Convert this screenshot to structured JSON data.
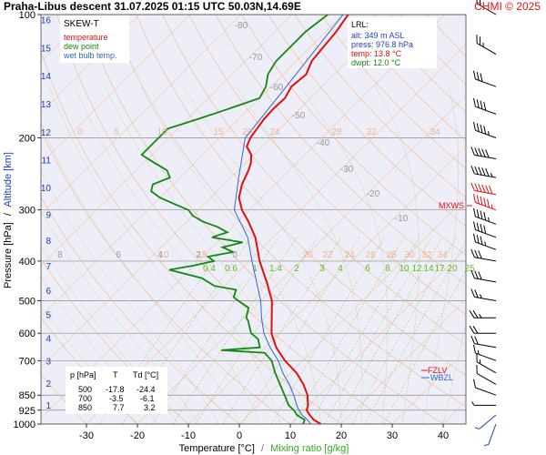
{
  "header": {
    "title": "Praha-Libus   descent   31.07.2025 01:15 UTC   50.03N,14.69E",
    "copyright": "CHMI © 2025"
  },
  "legend": {
    "title": "SKEW-T",
    "items": [
      {
        "label": "temperature",
        "color": "#e01010"
      },
      {
        "label": "dew point",
        "color": "#118811"
      },
      {
        "label": "wet bulb temp.",
        "color": "#3366cc"
      }
    ]
  },
  "lrl": {
    "title": "LRL:",
    "lines": [
      "alt: 349 m ASL",
      "press: 976.8 hPa",
      "temp: 13.8 °C",
      "dwpt: 12.0 °C"
    ],
    "colors": [
      "#1a3fbf",
      "#1a3fbf",
      "#e01010",
      "#118811"
    ]
  },
  "markers": {
    "mxws": "MXWS",
    "fzlv": "FZLV",
    "wbzl": "WBZL"
  },
  "table": {
    "header": [
      "p [hPa]",
      "T",
      "Td [°C]"
    ],
    "rows": [
      [
        "500",
        "-17.8",
        "-24.4"
      ],
      [
        "700",
        "-3.5",
        "-6.1"
      ],
      [
        "850",
        "7.7",
        "3.2"
      ]
    ]
  },
  "chart_data": {
    "type": "line",
    "pressure_levels": [
      100,
      200,
      300,
      400,
      500,
      600,
      700,
      850,
      925,
      1000
    ],
    "altitude_ticks": [
      1,
      2,
      3,
      4,
      5,
      6,
      7,
      8,
      9,
      10,
      11,
      12,
      13,
      14,
      15,
      16
    ],
    "temperature_ticks": [
      -30,
      -20,
      -10,
      0,
      10,
      20,
      30,
      40
    ],
    "xlim": [
      -35,
      45
    ],
    "ylim": [
      1000,
      100
    ],
    "xlabel": "Temperature [°C]",
    "xlabel_sep": "/",
    "xlabel2": "Mixing ratio [g/kg]",
    "ylabel": "Pressure [hPa]",
    "ylabel_sep": "/",
    "ylabel2": "Altitude [km]",
    "isotherm_labels_row1": [
      0,
      5,
      10,
      15,
      20,
      24,
      28,
      32,
      34
    ],
    "isotherm_labels_row2": [
      8,
      6,
      4,
      2,
      0,
      -10,
      -20,
      -30,
      -40,
      -50,
      -60,
      -70,
      -80
    ],
    "mixing_ratio_labels": [
      0.4,
      0.6,
      1,
      1.4,
      2,
      3,
      4,
      6,
      8,
      10,
      12,
      14,
      17,
      20,
      25
    ],
    "dry_adiabat_labels": [
      10,
      15,
      20,
      22,
      24,
      26,
      28,
      30,
      32,
      34
    ],
    "series": [
      {
        "name": "temperature",
        "color": "#e01010",
        "points": [
          [
            1000,
            16.0
          ],
          [
            976.8,
            13.8
          ],
          [
            950,
            12.0
          ],
          [
            925,
            10.5
          ],
          [
            900,
            9.8
          ],
          [
            850,
            7.7
          ],
          [
            800,
            4.8
          ],
          [
            750,
            1.2
          ],
          [
            700,
            -3.5
          ],
          [
            650,
            -7.8
          ],
          [
            600,
            -11.5
          ],
          [
            550,
            -14.5
          ],
          [
            500,
            -17.8
          ],
          [
            450,
            -22.5
          ],
          [
            400,
            -28.0
          ],
          [
            350,
            -33.5
          ],
          [
            320,
            -38.0
          ],
          [
            300,
            -41.5
          ],
          [
            280,
            -44.5
          ],
          [
            260,
            -46.5
          ],
          [
            240,
            -48.0
          ],
          [
            230,
            -49.0
          ],
          [
            220,
            -50.5
          ],
          [
            210,
            -53.0
          ],
          [
            200,
            -54.0
          ],
          [
            190,
            -54.5
          ],
          [
            180,
            -55.0
          ],
          [
            170,
            -55.2
          ],
          [
            160,
            -55.0
          ],
          [
            150,
            -56.0
          ],
          [
            140,
            -55.5
          ],
          [
            130,
            -57.0
          ],
          [
            120,
            -57.5
          ],
          [
            110,
            -58.0
          ],
          [
            100,
            -59.0
          ]
        ]
      },
      {
        "name": "dew point",
        "color": "#118811",
        "points": [
          [
            1000,
            12.5
          ],
          [
            976.8,
            12.0
          ],
          [
            950,
            9.5
          ],
          [
            925,
            8.0
          ],
          [
            900,
            6.0
          ],
          [
            850,
            3.2
          ],
          [
            800,
            0.2
          ],
          [
            750,
            -3.0
          ],
          [
            700,
            -6.1
          ],
          [
            670,
            -9.0
          ],
          [
            660,
            -18.0
          ],
          [
            650,
            -11.0
          ],
          [
            620,
            -13.0
          ],
          [
            600,
            -15.5
          ],
          [
            580,
            -17.0
          ],
          [
            560,
            -18.5
          ],
          [
            550,
            -19.5
          ],
          [
            520,
            -21.0
          ],
          [
            500,
            -24.4
          ],
          [
            490,
            -26.0
          ],
          [
            470,
            -27.0
          ],
          [
            460,
            -32.0
          ],
          [
            450,
            -34.0
          ],
          [
            440,
            -36.0
          ],
          [
            420,
            -44.0
          ],
          [
            410,
            -40.0
          ],
          [
            400,
            -37.0
          ],
          [
            390,
            -39.0
          ],
          [
            380,
            -35.0
          ],
          [
            370,
            -38.0
          ],
          [
            360,
            -35.0
          ],
          [
            350,
            -42.0
          ],
          [
            340,
            -40.0
          ],
          [
            330,
            -43.0
          ],
          [
            320,
            -47.0
          ],
          [
            310,
            -50.0
          ],
          [
            300,
            -52.0
          ],
          [
            290,
            -56.0
          ],
          [
            280,
            -60.0
          ],
          [
            270,
            -63.0
          ],
          [
            260,
            -64.0
          ],
          [
            250,
            -62.0
          ],
          [
            240,
            -64.0
          ],
          [
            230,
            -68.0
          ],
          [
            220,
            -72.0
          ],
          [
            210,
            -72.0
          ],
          [
            200,
            -72.0
          ],
          [
            190,
            -72.0
          ],
          [
            180,
            -68.0
          ],
          [
            170,
            -64.0
          ],
          [
            160,
            -60.0
          ],
          [
            150,
            -61.0
          ],
          [
            140,
            -63.0
          ],
          [
            130,
            -64.0
          ],
          [
            120,
            -64.0
          ],
          [
            110,
            -64.0
          ],
          [
            100,
            -63.0
          ]
        ]
      },
      {
        "name": "wet bulb temp.",
        "color": "#3366cc",
        "points": [
          [
            1000,
            14.0
          ],
          [
            976.8,
            12.6
          ],
          [
            950,
            10.5
          ],
          [
            925,
            9.0
          ],
          [
            900,
            7.6
          ],
          [
            850,
            5.0
          ],
          [
            800,
            2.0
          ],
          [
            750,
            -1.5
          ],
          [
            700,
            -4.8
          ],
          [
            650,
            -9.0
          ],
          [
            600,
            -13.0
          ],
          [
            550,
            -16.5
          ],
          [
            500,
            -20.0
          ],
          [
            450,
            -24.5
          ],
          [
            400,
            -29.5
          ],
          [
            350,
            -35.0
          ],
          [
            300,
            -43.0
          ],
          [
            250,
            -48.5
          ],
          [
            200,
            -55.0
          ],
          [
            150,
            -57.0
          ],
          [
            100,
            -60.0
          ]
        ]
      }
    ],
    "wind_barbs": [
      {
        "p": 100,
        "dir": 300,
        "speed": 20
      },
      {
        "p": 125,
        "dir": 300,
        "speed": 25
      },
      {
        "p": 150,
        "dir": 290,
        "speed": 30
      },
      {
        "p": 175,
        "dir": 290,
        "speed": 40
      },
      {
        "p": 200,
        "dir": 290,
        "speed": 45
      },
      {
        "p": 225,
        "dir": 280,
        "speed": 50
      },
      {
        "p": 250,
        "dir": 280,
        "speed": 55
      },
      {
        "p": 275,
        "dir": 280,
        "speed": 60
      },
      {
        "p": 300,
        "dir": 290,
        "speed": 55
      },
      {
        "p": 325,
        "dir": 290,
        "speed": 45
      },
      {
        "p": 350,
        "dir": 290,
        "speed": 40
      },
      {
        "p": 375,
        "dir": 290,
        "speed": 35
      },
      {
        "p": 400,
        "dir": 280,
        "speed": 30
      },
      {
        "p": 450,
        "dir": 280,
        "speed": 30
      },
      {
        "p": 500,
        "dir": 280,
        "speed": 25
      },
      {
        "p": 550,
        "dir": 270,
        "speed": 25
      },
      {
        "p": 600,
        "dir": 270,
        "speed": 20
      },
      {
        "p": 650,
        "dir": 280,
        "speed": 20
      },
      {
        "p": 700,
        "dir": 290,
        "speed": 15
      },
      {
        "p": 750,
        "dir": 300,
        "speed": 15
      },
      {
        "p": 800,
        "dir": 300,
        "speed": 10
      },
      {
        "p": 850,
        "dir": 290,
        "speed": 10
      },
      {
        "p": 900,
        "dir": 270,
        "speed": 5
      },
      {
        "p": 950,
        "dir": 230,
        "speed": 5
      },
      {
        "p": 1000,
        "dir": 200,
        "speed": 5
      }
    ]
  }
}
